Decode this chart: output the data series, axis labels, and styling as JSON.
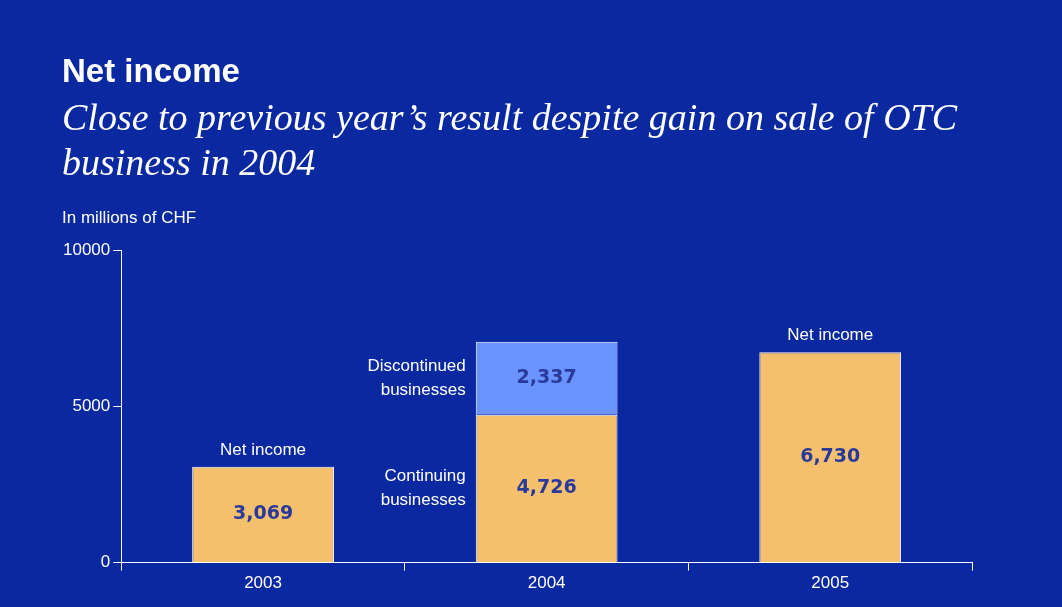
{
  "chart_data": {
    "type": "bar",
    "title": "Net income",
    "subtitle": "Close to previous year’s result despite gain on sale of OTC business in 2004",
    "ylabel": "In millions of CHF",
    "categories": [
      "2003",
      "2004",
      "2005"
    ],
    "stacked": true,
    "ylim": [
      0,
      10000
    ],
    "yticks": [
      0,
      5000,
      10000
    ],
    "grid": false,
    "legend": false,
    "series": [
      {
        "name": "Continuing businesses",
        "color": "#f5c06e",
        "values": [
          3069,
          4726,
          6730
        ],
        "value_labels": [
          "3,069",
          "4,726",
          "6,730"
        ]
      },
      {
        "name": "Discontinued businesses",
        "color": "#6b93ff",
        "values": [
          null,
          2337,
          null
        ],
        "value_labels": [
          null,
          "2,337",
          null
        ]
      }
    ],
    "annotations": [
      {
        "text": "Net income",
        "x": "2003",
        "y": 3069
      },
      {
        "text": "Net income",
        "x": "2005",
        "y": 6730
      }
    ]
  }
}
